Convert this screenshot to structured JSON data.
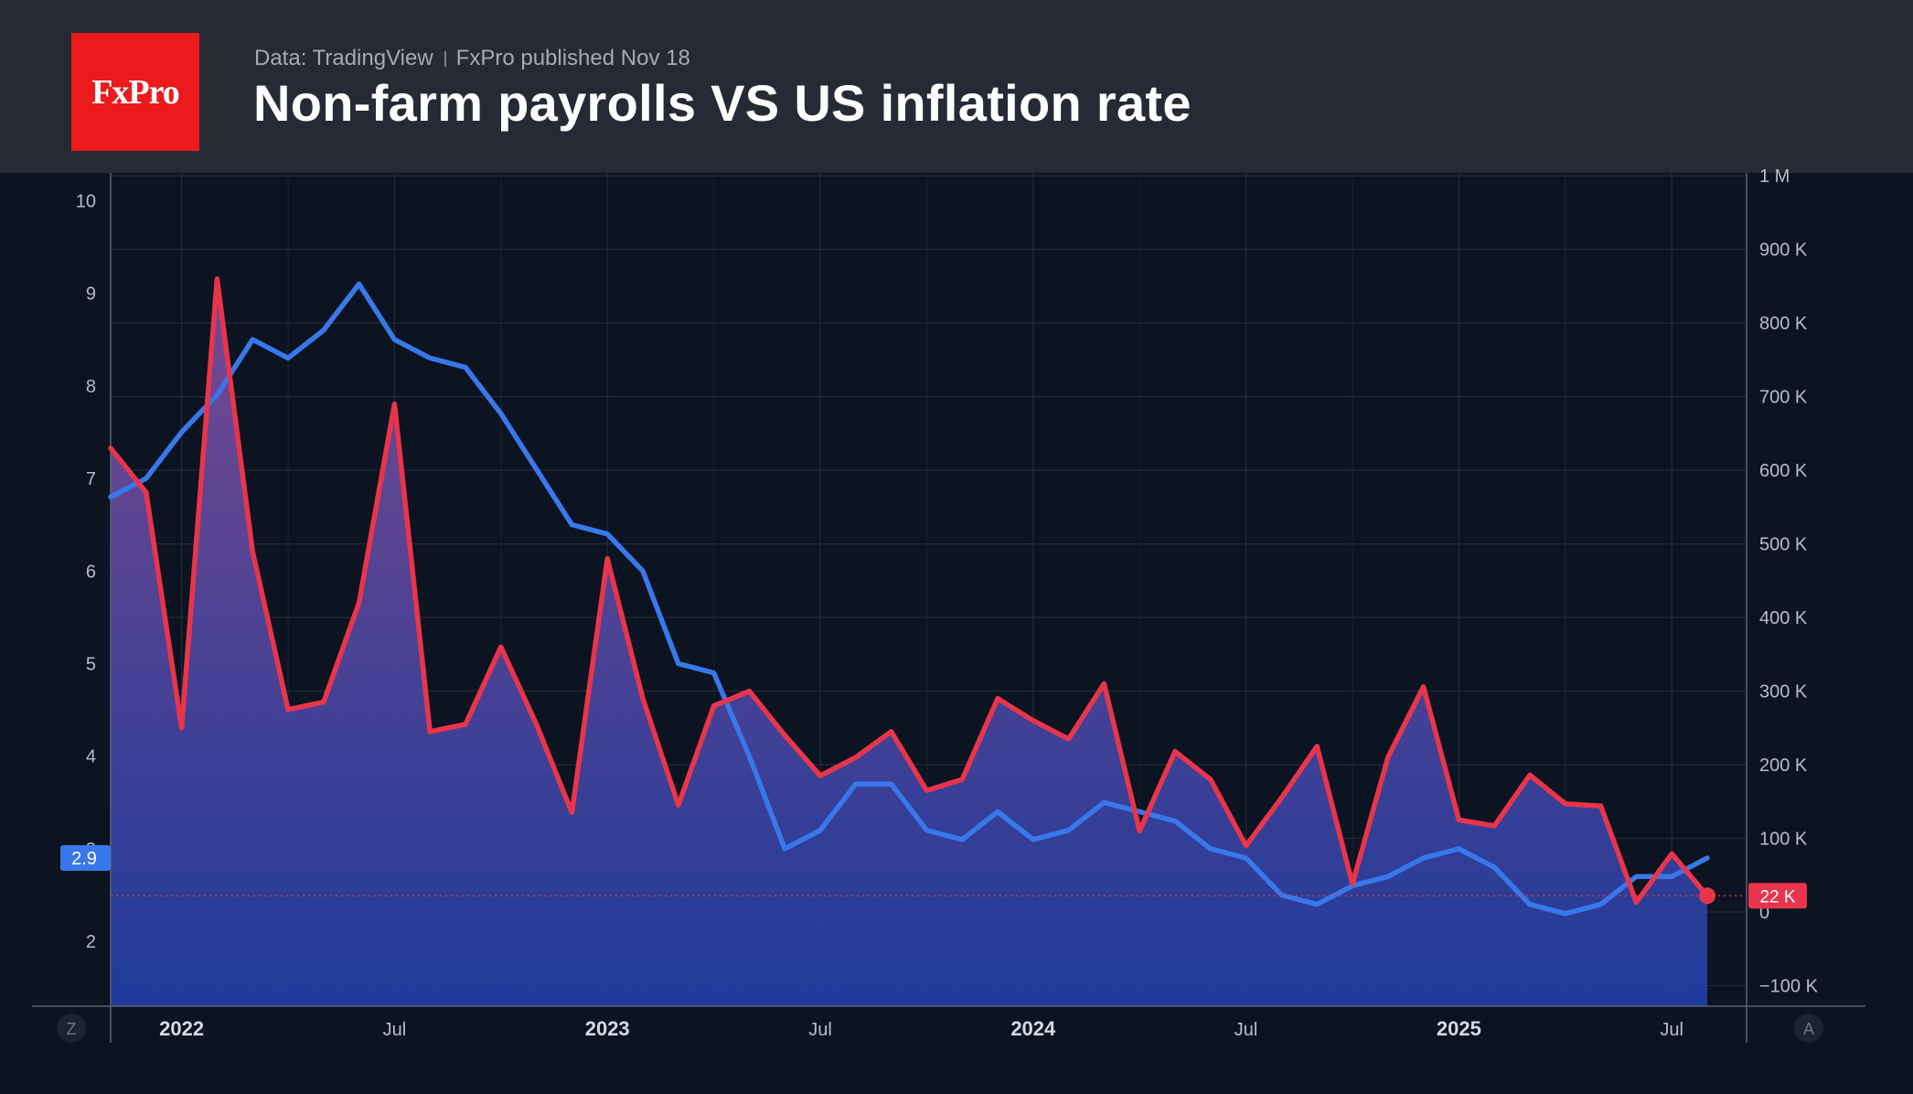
{
  "header": {
    "logo_text": "FxPro",
    "source": "Data: TradingView",
    "published": "FxPro published Nov 18",
    "title": "Non-farm payrolls VS US inflation rate"
  },
  "axis_buttons": {
    "left": "Z",
    "right": "A"
  },
  "last_values": {
    "inflation": "2.9",
    "payrolls": "22 K"
  },
  "colors": {
    "inflation": "#3878ea",
    "payrolls": "#e8354b",
    "background": "#0d1421",
    "header": "#262a35",
    "logo": "#ea1a1d",
    "area_top": "#7a4a92",
    "area_bottom": "#1f3c9c"
  },
  "chart_data": {
    "type": "line",
    "title": "Non-farm payrolls VS US inflation rate",
    "x_ticks": [
      "2022",
      "Jul",
      "2023",
      "Jul",
      "2024",
      "Jul",
      "2025",
      "Jul"
    ],
    "x_ticks_bold": [
      true,
      false,
      true,
      false,
      true,
      false,
      true,
      false
    ],
    "y_left": {
      "ticks": [
        "2",
        "3",
        "4",
        "5",
        "6",
        "7",
        "8",
        "9",
        "10"
      ],
      "ylim": [
        1.3,
        10.3
      ]
    },
    "y_right": {
      "ticks": [
        "−100 K",
        "0",
        "100 K",
        "200 K",
        "300 K",
        "400 K",
        "500 K",
        "600 K",
        "700 K",
        "800 K",
        "900 K",
        "1 M"
      ],
      "ylim": [
        -128000,
        1004000
      ]
    },
    "x_start": "2021-11",
    "x_end": "2025-08",
    "grid": true,
    "series": [
      {
        "axis": "left",
        "style": "line",
        "values": [
          6.8,
          7.0,
          7.5,
          7.9,
          8.5,
          8.3,
          8.6,
          9.1,
          8.5,
          8.3,
          8.2,
          7.7,
          7.1,
          6.5,
          6.4,
          6.0,
          5.0,
          4.9,
          4.0,
          3.0,
          3.2,
          3.7,
          3.7,
          3.2,
          3.1,
          3.4,
          3.1,
          3.2,
          3.5,
          3.4,
          3.3,
          3.0,
          2.9,
          2.5,
          2.4,
          2.6,
          2.7,
          2.9,
          3.0,
          2.8,
          2.4,
          2.3,
          2.4,
          2.7,
          2.7,
          2.9
        ]
      },
      {
        "axis": "right",
        "style": "area",
        "name": "",
        "values": [
          630000,
          570000,
          250000,
          860000,
          490000,
          275000,
          285000,
          420000,
          690000,
          245000,
          255000,
          360000,
          255000,
          135000,
          480000,
          290000,
          145000,
          280000,
          300000,
          240000,
          185000,
          210000,
          245000,
          165000,
          180000,
          290000,
          260000,
          235000,
          310000,
          110000,
          218000,
          180000,
          90000,
          155000,
          225000,
          38000,
          210000,
          306000,
          125000,
          117000,
          186000,
          147000,
          144000,
          13000,
          79000,
          22000
        ]
      }
    ]
  }
}
